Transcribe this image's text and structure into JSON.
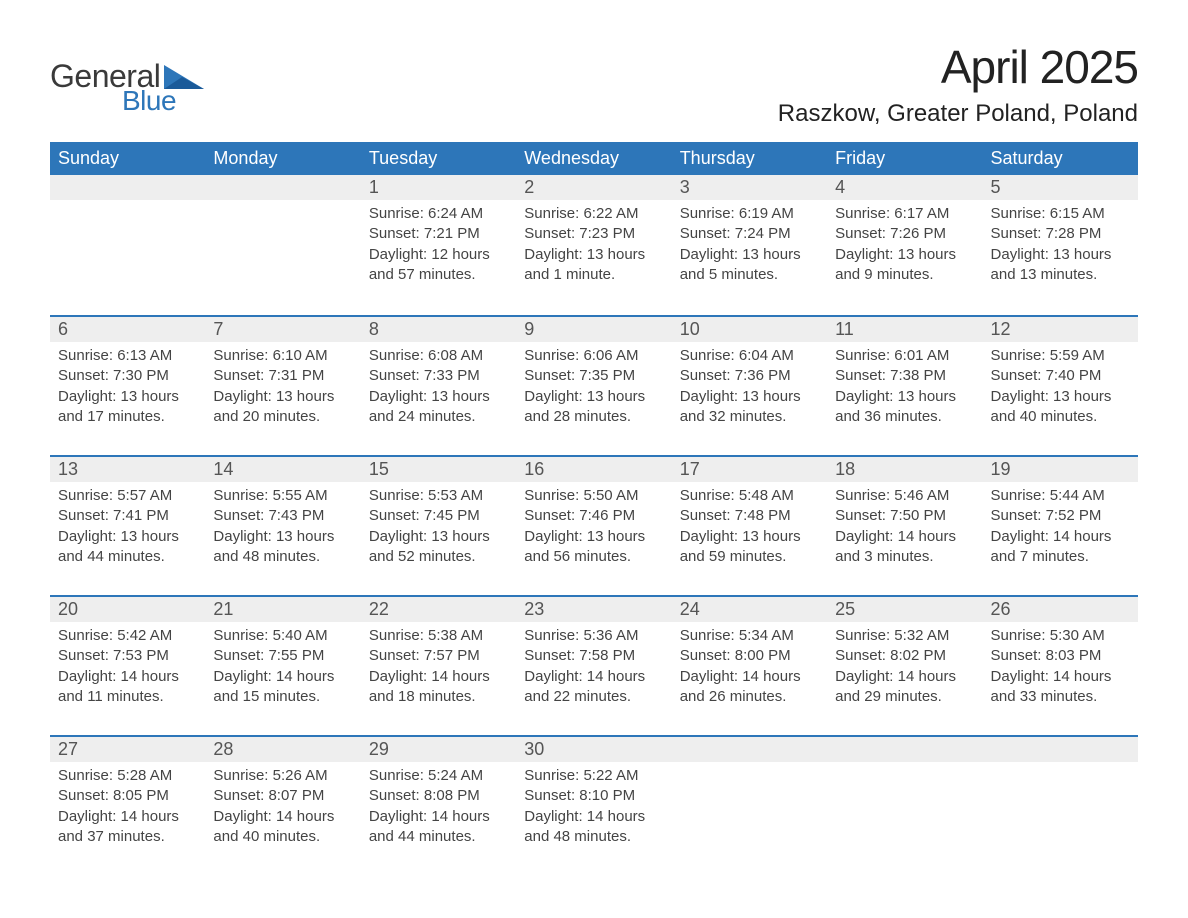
{
  "logo": {
    "general": "General",
    "blue": "Blue"
  },
  "title": "April 2025",
  "location": "Raszkow, Greater Poland, Poland",
  "colors": {
    "header_bg": "#2d76b9",
    "header_text": "#ffffff",
    "daynum_bg": "#eeeeee",
    "border": "#2d76b9",
    "text": "#444444"
  },
  "weekdays": [
    "Sunday",
    "Monday",
    "Tuesday",
    "Wednesday",
    "Thursday",
    "Friday",
    "Saturday"
  ],
  "weeks": [
    [
      null,
      null,
      {
        "n": "1",
        "sunrise": "Sunrise: 6:24 AM",
        "sunset": "Sunset: 7:21 PM",
        "daylight": "Daylight: 12 hours and 57 minutes."
      },
      {
        "n": "2",
        "sunrise": "Sunrise: 6:22 AM",
        "sunset": "Sunset: 7:23 PM",
        "daylight": "Daylight: 13 hours and 1 minute."
      },
      {
        "n": "3",
        "sunrise": "Sunrise: 6:19 AM",
        "sunset": "Sunset: 7:24 PM",
        "daylight": "Daylight: 13 hours and 5 minutes."
      },
      {
        "n": "4",
        "sunrise": "Sunrise: 6:17 AM",
        "sunset": "Sunset: 7:26 PM",
        "daylight": "Daylight: 13 hours and 9 minutes."
      },
      {
        "n": "5",
        "sunrise": "Sunrise: 6:15 AM",
        "sunset": "Sunset: 7:28 PM",
        "daylight": "Daylight: 13 hours and 13 minutes."
      }
    ],
    [
      {
        "n": "6",
        "sunrise": "Sunrise: 6:13 AM",
        "sunset": "Sunset: 7:30 PM",
        "daylight": "Daylight: 13 hours and 17 minutes."
      },
      {
        "n": "7",
        "sunrise": "Sunrise: 6:10 AM",
        "sunset": "Sunset: 7:31 PM",
        "daylight": "Daylight: 13 hours and 20 minutes."
      },
      {
        "n": "8",
        "sunrise": "Sunrise: 6:08 AM",
        "sunset": "Sunset: 7:33 PM",
        "daylight": "Daylight: 13 hours and 24 minutes."
      },
      {
        "n": "9",
        "sunrise": "Sunrise: 6:06 AM",
        "sunset": "Sunset: 7:35 PM",
        "daylight": "Daylight: 13 hours and 28 minutes."
      },
      {
        "n": "10",
        "sunrise": "Sunrise: 6:04 AM",
        "sunset": "Sunset: 7:36 PM",
        "daylight": "Daylight: 13 hours and 32 minutes."
      },
      {
        "n": "11",
        "sunrise": "Sunrise: 6:01 AM",
        "sunset": "Sunset: 7:38 PM",
        "daylight": "Daylight: 13 hours and 36 minutes."
      },
      {
        "n": "12",
        "sunrise": "Sunrise: 5:59 AM",
        "sunset": "Sunset: 7:40 PM",
        "daylight": "Daylight: 13 hours and 40 minutes."
      }
    ],
    [
      {
        "n": "13",
        "sunrise": "Sunrise: 5:57 AM",
        "sunset": "Sunset: 7:41 PM",
        "daylight": "Daylight: 13 hours and 44 minutes."
      },
      {
        "n": "14",
        "sunrise": "Sunrise: 5:55 AM",
        "sunset": "Sunset: 7:43 PM",
        "daylight": "Daylight: 13 hours and 48 minutes."
      },
      {
        "n": "15",
        "sunrise": "Sunrise: 5:53 AM",
        "sunset": "Sunset: 7:45 PM",
        "daylight": "Daylight: 13 hours and 52 minutes."
      },
      {
        "n": "16",
        "sunrise": "Sunrise: 5:50 AM",
        "sunset": "Sunset: 7:46 PM",
        "daylight": "Daylight: 13 hours and 56 minutes."
      },
      {
        "n": "17",
        "sunrise": "Sunrise: 5:48 AM",
        "sunset": "Sunset: 7:48 PM",
        "daylight": "Daylight: 13 hours and 59 minutes."
      },
      {
        "n": "18",
        "sunrise": "Sunrise: 5:46 AM",
        "sunset": "Sunset: 7:50 PM",
        "daylight": "Daylight: 14 hours and 3 minutes."
      },
      {
        "n": "19",
        "sunrise": "Sunrise: 5:44 AM",
        "sunset": "Sunset: 7:52 PM",
        "daylight": "Daylight: 14 hours and 7 minutes."
      }
    ],
    [
      {
        "n": "20",
        "sunrise": "Sunrise: 5:42 AM",
        "sunset": "Sunset: 7:53 PM",
        "daylight": "Daylight: 14 hours and 11 minutes."
      },
      {
        "n": "21",
        "sunrise": "Sunrise: 5:40 AM",
        "sunset": "Sunset: 7:55 PM",
        "daylight": "Daylight: 14 hours and 15 minutes."
      },
      {
        "n": "22",
        "sunrise": "Sunrise: 5:38 AM",
        "sunset": "Sunset: 7:57 PM",
        "daylight": "Daylight: 14 hours and 18 minutes."
      },
      {
        "n": "23",
        "sunrise": "Sunrise: 5:36 AM",
        "sunset": "Sunset: 7:58 PM",
        "daylight": "Daylight: 14 hours and 22 minutes."
      },
      {
        "n": "24",
        "sunrise": "Sunrise: 5:34 AM",
        "sunset": "Sunset: 8:00 PM",
        "daylight": "Daylight: 14 hours and 26 minutes."
      },
      {
        "n": "25",
        "sunrise": "Sunrise: 5:32 AM",
        "sunset": "Sunset: 8:02 PM",
        "daylight": "Daylight: 14 hours and 29 minutes."
      },
      {
        "n": "26",
        "sunrise": "Sunrise: 5:30 AM",
        "sunset": "Sunset: 8:03 PM",
        "daylight": "Daylight: 14 hours and 33 minutes."
      }
    ],
    [
      {
        "n": "27",
        "sunrise": "Sunrise: 5:28 AM",
        "sunset": "Sunset: 8:05 PM",
        "daylight": "Daylight: 14 hours and 37 minutes."
      },
      {
        "n": "28",
        "sunrise": "Sunrise: 5:26 AM",
        "sunset": "Sunset: 8:07 PM",
        "daylight": "Daylight: 14 hours and 40 minutes."
      },
      {
        "n": "29",
        "sunrise": "Sunrise: 5:24 AM",
        "sunset": "Sunset: 8:08 PM",
        "daylight": "Daylight: 14 hours and 44 minutes."
      },
      {
        "n": "30",
        "sunrise": "Sunrise: 5:22 AM",
        "sunset": "Sunset: 8:10 PM",
        "daylight": "Daylight: 14 hours and 48 minutes."
      },
      null,
      null,
      null
    ]
  ]
}
